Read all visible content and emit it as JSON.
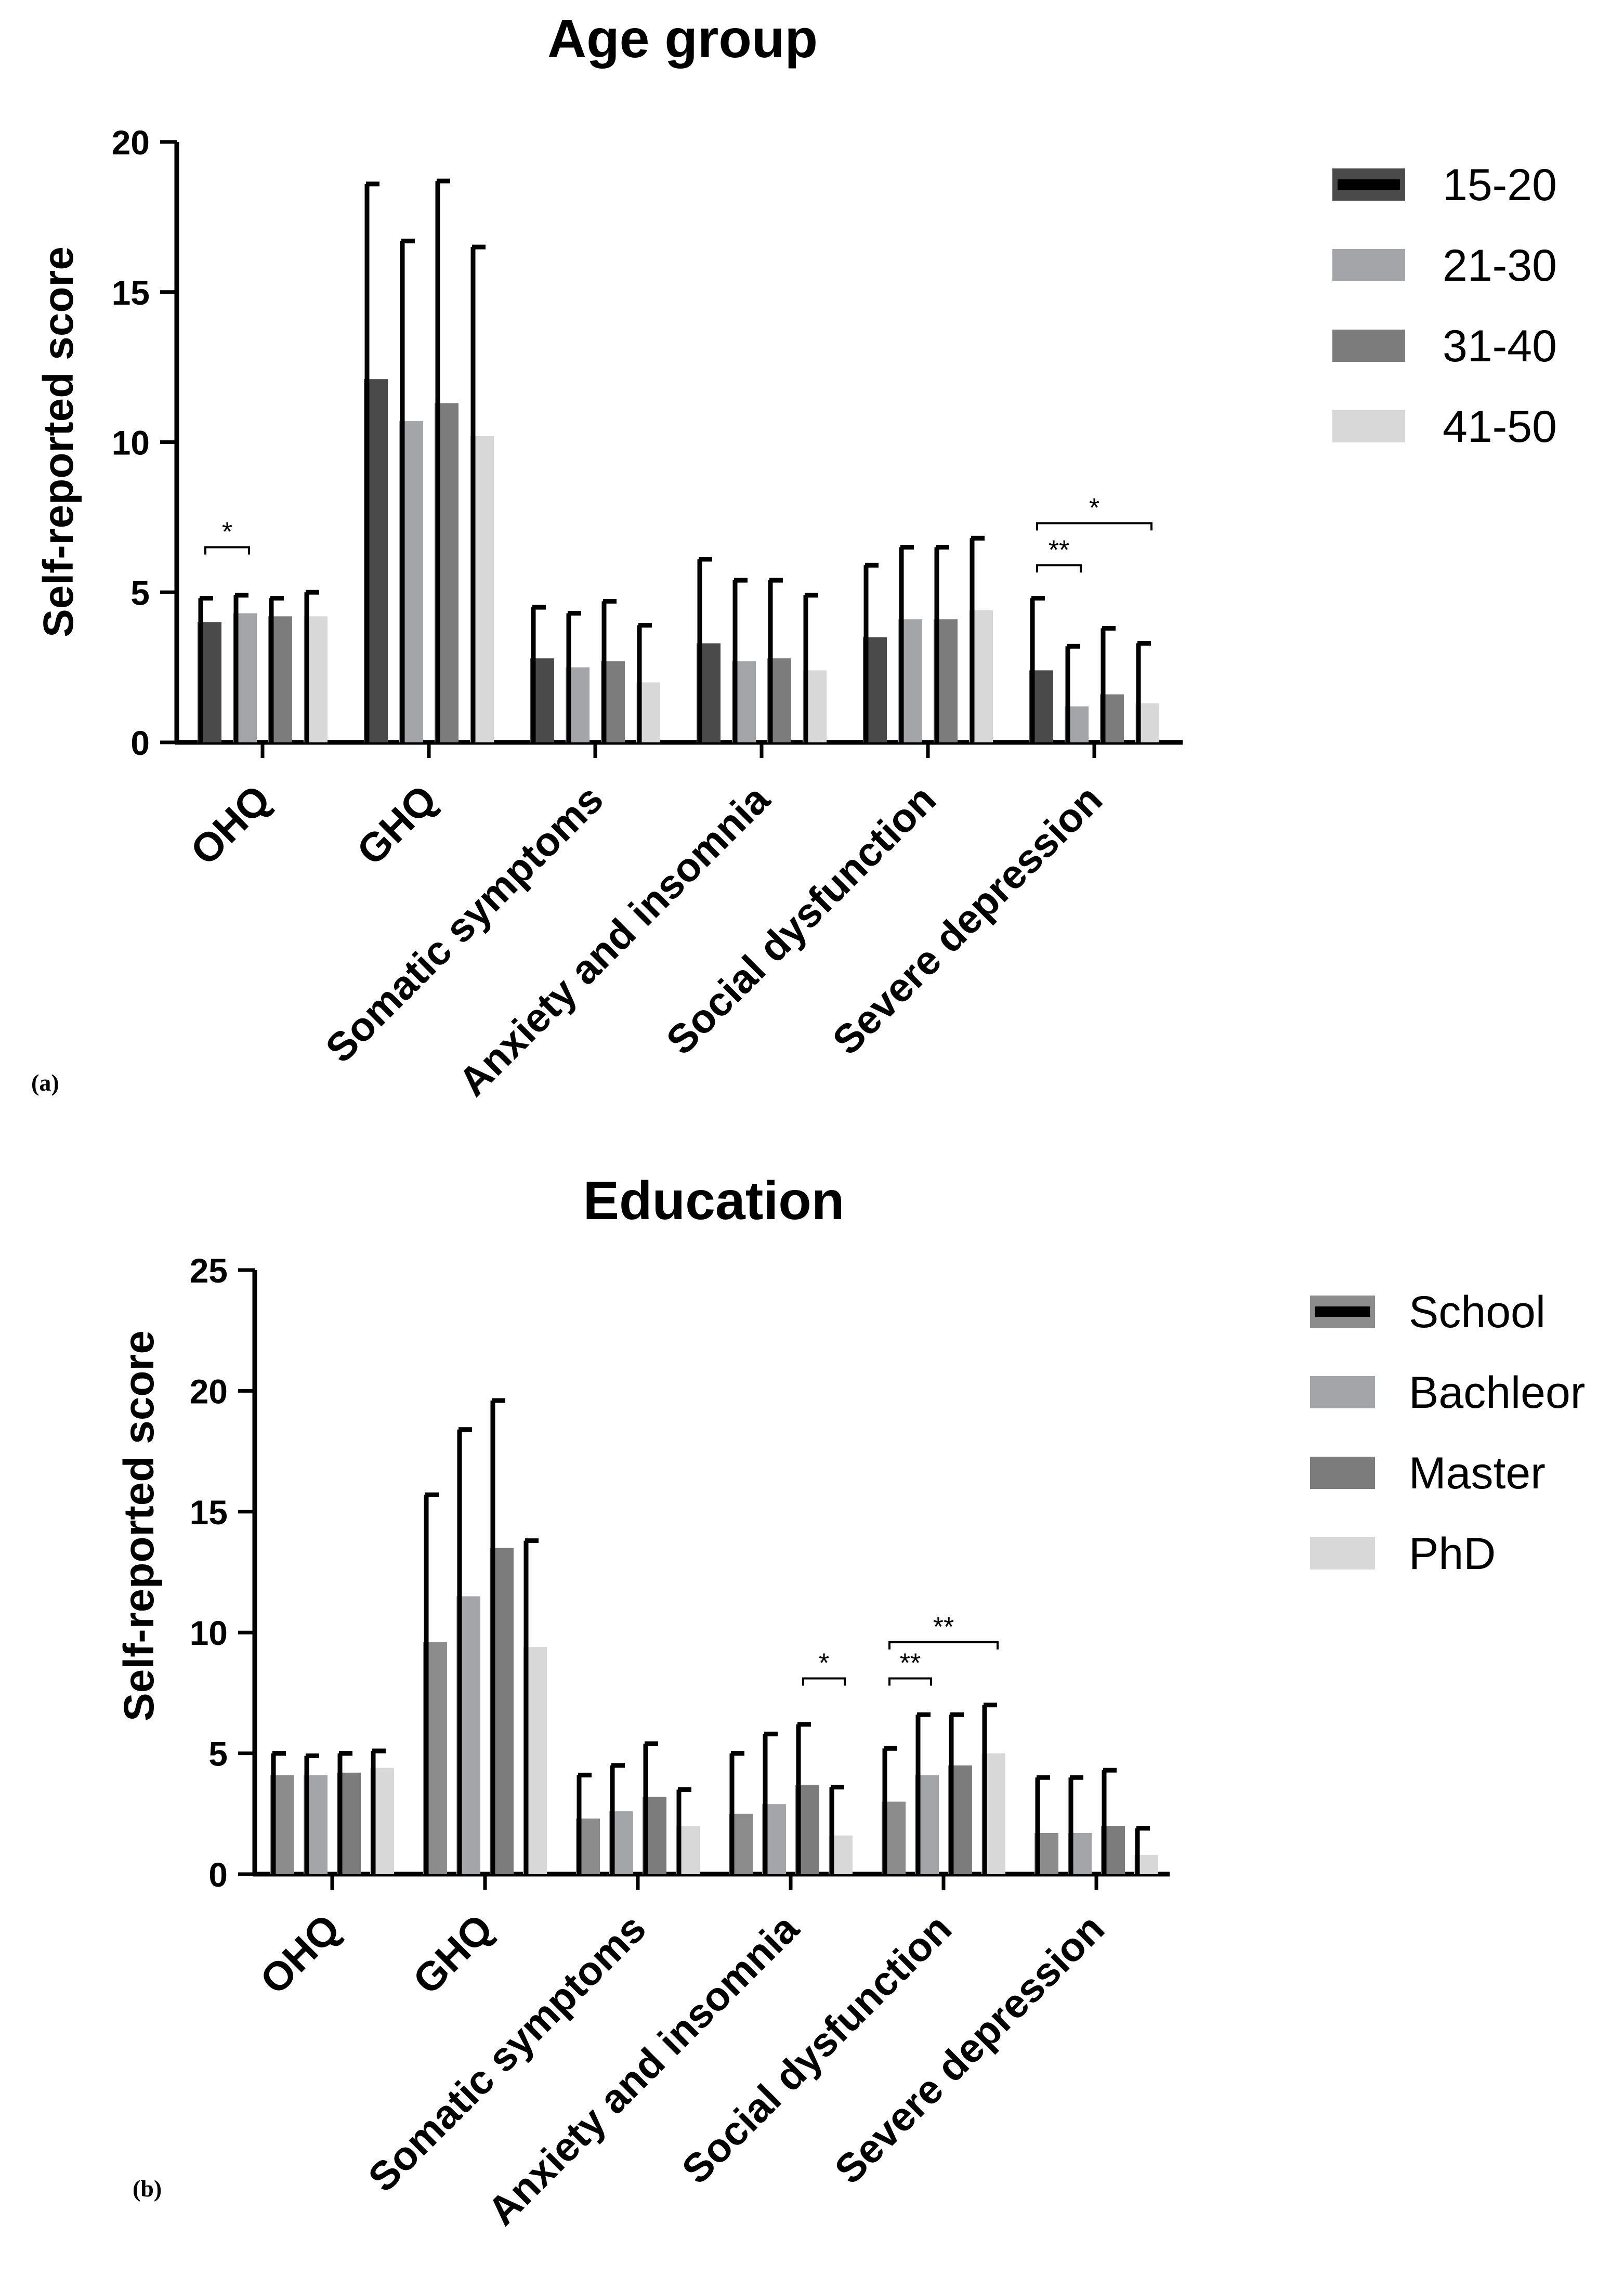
{
  "chart_data": [
    {
      "type": "bar",
      "panel_label": "(a)",
      "title": "Age group",
      "xlabel": "",
      "ylabel": "Self-reported score",
      "ylim": [
        0,
        20
      ],
      "yticks": [
        0,
        5,
        10,
        15,
        20
      ],
      "categories": [
        "OHQ",
        "GHQ",
        "Somatic symptoms",
        "Anxiety and insomnia",
        "Social dysfunction",
        "Severe depression"
      ],
      "series": [
        {
          "name": "15-20",
          "color": "#4a4a4a",
          "values": [
            4.0,
            12.1,
            2.8,
            3.3,
            3.5,
            2.4
          ],
          "errors": [
            0.8,
            6.5,
            1.7,
            2.8,
            2.4,
            2.4
          ]
        },
        {
          "name": "21-30",
          "color": "#a4a5a8",
          "values": [
            4.3,
            10.7,
            2.5,
            2.7,
            4.1,
            1.2
          ],
          "errors": [
            0.6,
            6.0,
            1.8,
            2.7,
            2.4,
            2.0
          ]
        },
        {
          "name": "31-40",
          "color": "#7c7c7c",
          "values": [
            4.2,
            11.3,
            2.7,
            2.8,
            4.1,
            1.6
          ],
          "errors": [
            0.6,
            7.4,
            2.0,
            2.6,
            2.4,
            2.2
          ]
        },
        {
          "name": "41-50",
          "color": "#d8d8d8",
          "values": [
            4.2,
            10.2,
            2.0,
            2.4,
            4.4,
            1.3
          ],
          "errors": [
            0.8,
            6.3,
            1.9,
            2.5,
            2.4,
            2.0
          ]
        }
      ],
      "significance": [
        {
          "category": 0,
          "from_series": 0,
          "to_series": 1,
          "y": 6.5,
          "label": "*"
        },
        {
          "category": 5,
          "from_series": 0,
          "to_series": 1,
          "y": 5.9,
          "label": "**"
        },
        {
          "category": 5,
          "from_series": 0,
          "to_series": 3,
          "y": 7.3,
          "label": "*"
        }
      ],
      "legend": {
        "position": "top-right",
        "entries": [
          "15-20",
          "21-30",
          "31-40",
          "41-50"
        ]
      }
    },
    {
      "type": "bar",
      "panel_label": "(b)",
      "title": "Education",
      "xlabel": "",
      "ylabel": "Self-reported score",
      "ylim": [
        0,
        25
      ],
      "yticks": [
        0,
        5,
        10,
        15,
        20,
        25
      ],
      "categories": [
        "OHQ",
        "GHQ",
        "Somatic symptoms",
        "Anxiety and insomnia",
        "Social dysfunction",
        "Severe depression"
      ],
      "series": [
        {
          "name": "School",
          "color": "#8c8c8c",
          "values": [
            4.1,
            9.6,
            2.3,
            2.5,
            3.0,
            1.7
          ],
          "errors": [
            0.9,
            6.1,
            1.8,
            2.5,
            2.2,
            2.3
          ]
        },
        {
          "name": "Bachleor",
          "color": "#a4a5a8",
          "values": [
            4.1,
            11.5,
            2.6,
            2.9,
            4.1,
            1.7
          ],
          "errors": [
            0.8,
            6.9,
            1.9,
            2.9,
            2.5,
            2.3
          ]
        },
        {
          "name": "Master",
          "color": "#7c7c7c",
          "values": [
            4.2,
            13.5,
            3.2,
            3.7,
            4.5,
            2.0
          ],
          "errors": [
            0.8,
            6.1,
            2.2,
            2.5,
            2.1,
            2.3
          ]
        },
        {
          "name": "PhD",
          "color": "#d8d8d8",
          "values": [
            4.4,
            9.4,
            2.0,
            1.6,
            5.0,
            0.8
          ],
          "errors": [
            0.7,
            4.4,
            1.5,
            2.0,
            2.0,
            1.1
          ]
        }
      ],
      "significance": [
        {
          "category": 3,
          "from_series": 2,
          "to_series": 3,
          "y": 8.1,
          "label": "*"
        },
        {
          "category": 4,
          "from_series": 0,
          "to_series": 1,
          "y": 8.1,
          "label": "**"
        },
        {
          "category": 4,
          "from_series": 0,
          "to_series": 3,
          "y": 9.6,
          "label": "**"
        }
      ],
      "legend": {
        "position": "top-right",
        "entries": [
          "School",
          "Bachleor",
          "Master",
          "PhD"
        ]
      }
    }
  ]
}
